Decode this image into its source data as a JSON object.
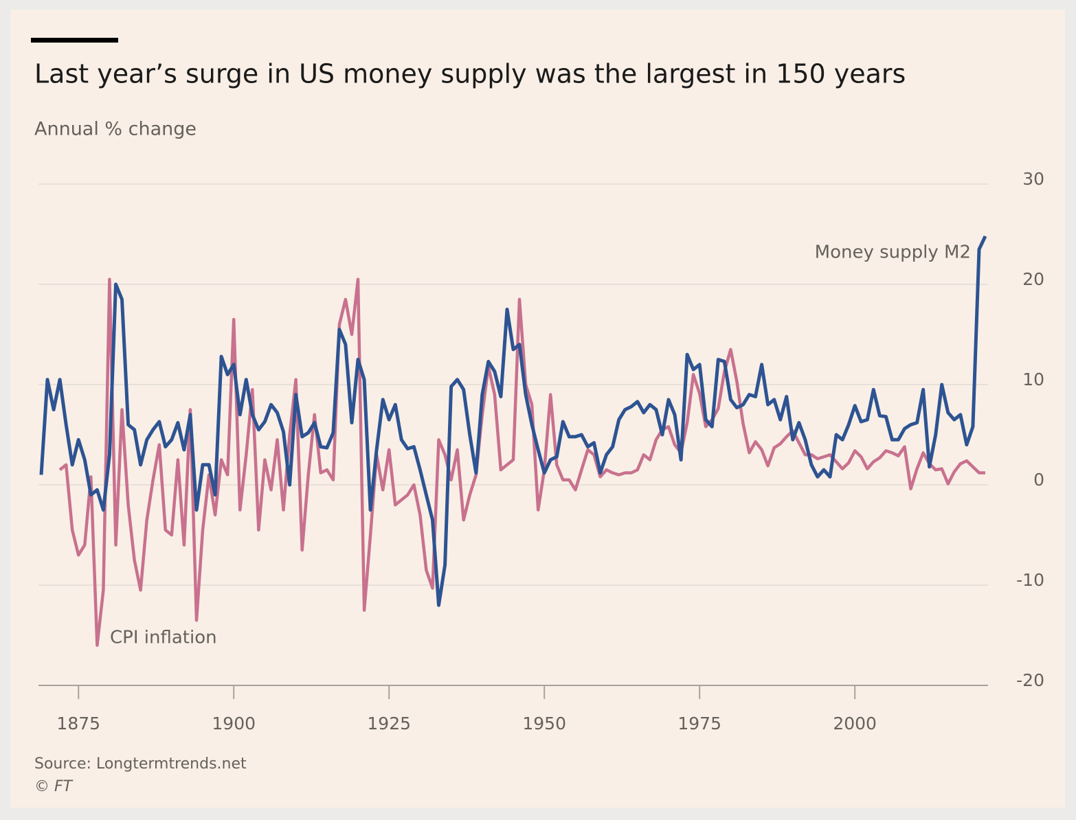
{
  "chart_data": {
    "type": "line",
    "title": "Last year’s surge in US money supply was the largest in 150 years",
    "subtitle": "Annual % change",
    "source": "Source: Longtermtrends.net",
    "copyright": "© FT",
    "annotations": [
      "Money supply M2",
      "CPI inflation"
    ],
    "x": [
      1869,
      1870,
      1871,
      1872,
      1873,
      1874,
      1875,
      1876,
      1877,
      1878,
      1879,
      1880,
      1881,
      1882,
      1883,
      1884,
      1885,
      1886,
      1887,
      1888,
      1889,
      1890,
      1891,
      1892,
      1893,
      1894,
      1895,
      1896,
      1897,
      1898,
      1899,
      1900,
      1901,
      1902,
      1903,
      1904,
      1905,
      1906,
      1907,
      1908,
      1909,
      1910,
      1911,
      1912,
      1913,
      1914,
      1915,
      1916,
      1917,
      1918,
      1919,
      1920,
      1921,
      1922,
      1923,
      1924,
      1925,
      1926,
      1927,
      1928,
      1929,
      1930,
      1931,
      1932,
      1933,
      1934,
      1935,
      1936,
      1937,
      1938,
      1939,
      1940,
      1941,
      1942,
      1943,
      1944,
      1945,
      1946,
      1947,
      1948,
      1949,
      1950,
      1951,
      1952,
      1953,
      1954,
      1955,
      1956,
      1957,
      1958,
      1959,
      1960,
      1961,
      1962,
      1963,
      1964,
      1965,
      1966,
      1967,
      1968,
      1969,
      1970,
      1971,
      1972,
      1973,
      1974,
      1975,
      1976,
      1977,
      1978,
      1979,
      1980,
      1981,
      1982,
      1983,
      1984,
      1985,
      1986,
      1987,
      1988,
      1989,
      1990,
      1991,
      1992,
      1993,
      1994,
      1995,
      1996,
      1997,
      1998,
      1999,
      2000,
      2001,
      2002,
      2003,
      2004,
      2005,
      2006,
      2007,
      2008,
      2009,
      2010,
      2011,
      2012,
      2013,
      2014,
      2015,
      2016,
      2017,
      2018,
      2019,
      2020,
      2021
    ],
    "series": [
      {
        "name": "CPI inflation",
        "color": "#c8718e",
        "values": [
          null,
          null,
          null,
          1.5,
          2,
          -4.5,
          -7,
          -6,
          0.8,
          -16,
          -10.5,
          20.5,
          -6,
          7.5,
          -2,
          -7.5,
          -10.5,
          -3.5,
          0.5,
          4,
          -4.5,
          -5,
          2.5,
          -6,
          7.5,
          -13.5,
          -4.5,
          1,
          -3,
          2.5,
          1,
          16.5,
          -2.5,
          3,
          9.5,
          -4.5,
          2.5,
          -0.5,
          4.5,
          -2.5,
          5,
          10.5,
          -6.5,
          1,
          7,
          1.2,
          1.5,
          0.5,
          16,
          18.5,
          15,
          20.5,
          -12.5,
          -5,
          3,
          -0.5,
          3.5,
          -2,
          -1.5,
          -1,
          0,
          -3,
          -8.5,
          -10.3,
          4.5,
          3,
          0.5,
          3.5,
          -3.5,
          -1,
          1,
          7,
          11.8,
          9,
          1.5,
          2,
          2.5,
          18.5,
          10,
          8,
          -2.5,
          1.5,
          9,
          2,
          0.5,
          0.5,
          -0.5,
          1.5,
          3.5,
          3,
          0.8,
          1.5,
          1.2,
          1,
          1.2,
          1.2,
          1.5,
          3,
          2.5,
          4.5,
          5.5,
          5.8,
          4,
          3.2,
          6.2,
          11,
          9.1,
          5.8,
          6.5,
          7.6,
          11.3,
          13.5,
          10.3,
          6.1,
          3.2,
          4.3,
          3.5,
          1.9,
          3.7,
          4.1,
          4.8,
          5.4,
          4.2,
          3,
          3,
          2.6,
          2.8,
          3,
          2.3,
          1.6,
          2.2,
          3.4,
          2.8,
          1.6,
          2.3,
          2.7,
          3.4,
          3.2,
          2.9,
          3.8,
          -0.4,
          1.6,
          3.2,
          2.1,
          1.5,
          1.6,
          0.1,
          1.3,
          2.1,
          2.4,
          1.8,
          1.2,
          1.2
        ]
      },
      {
        "name": "Money supply M2",
        "color": "#2d5392",
        "values": [
          1,
          10.5,
          7.5,
          10.5,
          6,
          2,
          4.5,
          2.5,
          -1,
          -0.5,
          -2.5,
          3,
          20,
          18.5,
          6,
          5.5,
          2,
          4.5,
          5.5,
          6.3,
          3.8,
          4.5,
          6.2,
          3.5,
          7,
          -2.5,
          2,
          2,
          -1,
          12.8,
          11,
          12,
          7,
          10.5,
          7,
          5.5,
          6.3,
          8,
          7.2,
          5.3,
          0,
          9,
          4.8,
          5.2,
          6.2,
          3.8,
          3.7,
          5.2,
          15.5,
          14,
          6.2,
          12.5,
          10.5,
          -2.5,
          3.5,
          8.5,
          6.5,
          8,
          4.5,
          3.6,
          3.8,
          1.5,
          -1,
          -3.5,
          -12,
          -8,
          9.8,
          10.5,
          9.5,
          5,
          1.2,
          9,
          12.3,
          11.3,
          8.8,
          17.5,
          13.5,
          14,
          9,
          6,
          3.5,
          1.2,
          2.5,
          2.8,
          6.3,
          4.8,
          4.8,
          5,
          3.8,
          4.2,
          1.2,
          3,
          3.8,
          6.5,
          7.5,
          7.8,
          8.3,
          7.2,
          8,
          7.5,
          5,
          8.5,
          7,
          2.5,
          13,
          11.5,
          12,
          6.5,
          5.8,
          12.5,
          12.3,
          8.5,
          7.7,
          8,
          9,
          8.8,
          12,
          8,
          8.5,
          6.5,
          8.8,
          4.5,
          6.2,
          4.5,
          2,
          0.8,
          1.5,
          0.8,
          5,
          4.5,
          6,
          7.9,
          6.3,
          6.5,
          9.5,
          6.9,
          6.8,
          4.5,
          4.5,
          5.6,
          6,
          6.2,
          9.5,
          1.8,
          5,
          10,
          7.2,
          6.5,
          7,
          4,
          5.8,
          23.5,
          24.8
        ]
      }
    ],
    "xlim": [
      1869,
      2021
    ],
    "xticks": [
      1875,
      1900,
      1925,
      1950,
      1975,
      2000
    ],
    "ylim": [
      -20,
      30
    ],
    "yticks": [
      -20,
      -10,
      0,
      10,
      20,
      30
    ],
    "grid": true
  }
}
